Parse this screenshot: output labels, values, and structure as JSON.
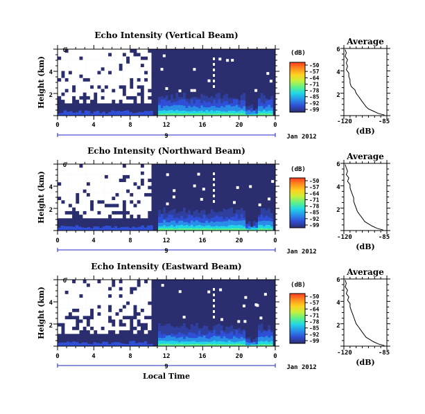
{
  "chart_data": [
    {
      "type": "heatmap",
      "title": "Echo Intensity (Vertical Beam)",
      "ylabel": "Height (km)",
      "yticks": [
        "6",
        "4",
        "2"
      ],
      "xticks": [
        "0",
        "4",
        "8",
        "12",
        "16",
        "20",
        "0"
      ],
      "date_label": "Jan 2012",
      "day_label": "9",
      "colorbar": {
        "unit": "(dB)",
        "ticks": [
          "-50",
          "-57",
          "-64",
          "-71",
          "-78",
          "-85",
          "-92",
          "-99"
        ]
      },
      "profile": {
        "title": "Average",
        "xlabel": "(dB)",
        "xticks": [
          "-120",
          "-85"
        ],
        "yticks": [
          "6",
          "4",
          "2"
        ],
        "xlim": [
          -120,
          -85
        ],
        "ylim": [
          0,
          6
        ],
        "points": [
          [
            -119,
            5.9
          ],
          [
            -118,
            5.6
          ],
          [
            -119,
            5.3
          ],
          [
            -117,
            5.0
          ],
          [
            -118,
            4.7
          ],
          [
            -117,
            4.4
          ],
          [
            -118,
            4.1
          ],
          [
            -116,
            3.8
          ],
          [
            -116,
            3.5
          ],
          [
            -115,
            3.2
          ],
          [
            -115,
            2.9
          ],
          [
            -114,
            2.6
          ],
          [
            -111,
            2.3
          ],
          [
            -110,
            2.0
          ],
          [
            -108,
            1.7
          ],
          [
            -106,
            1.4
          ],
          [
            -104,
            1.1
          ],
          [
            -102,
            0.8
          ],
          [
            -100,
            0.6
          ],
          [
            -96,
            0.4
          ],
          [
            -92,
            0.2
          ],
          [
            -87,
            0.05
          ]
        ]
      }
    },
    {
      "type": "heatmap",
      "title": "Echo Intensity (Northward Beam)",
      "ylabel": "Height (km)",
      "yticks": [
        "6",
        "4",
        "2"
      ],
      "xticks": [
        "0",
        "4",
        "8",
        "12",
        "16",
        "20",
        "0"
      ],
      "date_label": "Jan 2012",
      "day_label": "9",
      "colorbar": {
        "unit": "(dB)",
        "ticks": [
          "-50",
          "-57",
          "-64",
          "-71",
          "-78",
          "-85",
          "-92",
          "-99"
        ]
      },
      "profile": {
        "title": "Average",
        "xlabel": "(dB)",
        "xticks": [
          "-120",
          "-85"
        ],
        "yticks": [
          "6",
          "4",
          "2"
        ],
        "xlim": [
          -120,
          -85
        ],
        "ylim": [
          0,
          6
        ],
        "points": [
          [
            -119,
            5.9
          ],
          [
            -118,
            5.6
          ],
          [
            -117,
            5.3
          ],
          [
            -118,
            5.0
          ],
          [
            -116,
            4.7
          ],
          [
            -117,
            4.4
          ],
          [
            -115,
            4.1
          ],
          [
            -115,
            3.8
          ],
          [
            -114,
            3.5
          ],
          [
            -113,
            3.2
          ],
          [
            -112,
            2.9
          ],
          [
            -112,
            2.6
          ],
          [
            -111,
            2.3
          ],
          [
            -110,
            2.0
          ],
          [
            -109,
            1.7
          ],
          [
            -107,
            1.4
          ],
          [
            -105,
            1.1
          ],
          [
            -103,
            0.8
          ],
          [
            -100,
            0.6
          ],
          [
            -97,
            0.4
          ],
          [
            -93,
            0.2
          ],
          [
            -88,
            0.05
          ]
        ]
      }
    },
    {
      "type": "heatmap",
      "title": "Echo Intensity (Eastward Beam)",
      "ylabel": "Height (km)",
      "yticks": [
        "6",
        "4",
        "2"
      ],
      "xticks": [
        "0",
        "4",
        "8",
        "12",
        "16",
        "20",
        "0"
      ],
      "xlabel": "Local Time",
      "date_label": "Jan 2012",
      "day_label": "9",
      "colorbar": {
        "unit": "(dB)",
        "ticks": [
          "-50",
          "-57",
          "-64",
          "-71",
          "-78",
          "-85",
          "-92",
          "-99"
        ]
      },
      "profile": {
        "title": "Average",
        "xlabel": "(dB)",
        "xticks": [
          "-120",
          "-85"
        ],
        "yticks": [
          "6",
          "4",
          "2"
        ],
        "xlim": [
          -120,
          -85
        ],
        "ylim": [
          0,
          6
        ],
        "points": [
          [
            -119,
            5.9
          ],
          [
            -118,
            5.6
          ],
          [
            -119,
            5.3
          ],
          [
            -117,
            5.0
          ],
          [
            -118,
            4.7
          ],
          [
            -116,
            4.4
          ],
          [
            -117,
            4.1
          ],
          [
            -115,
            3.8
          ],
          [
            -115,
            3.5
          ],
          [
            -114,
            3.2
          ],
          [
            -113,
            2.9
          ],
          [
            -112,
            2.6
          ],
          [
            -111,
            2.3
          ],
          [
            -110,
            2.0
          ],
          [
            -108,
            1.7
          ],
          [
            -106,
            1.4
          ],
          [
            -104,
            1.1
          ],
          [
            -102,
            0.8
          ],
          [
            -99,
            0.6
          ],
          [
            -96,
            0.4
          ],
          [
            -92,
            0.2
          ],
          [
            -87,
            0.05
          ]
        ]
      }
    }
  ],
  "colors": {
    "background_field": "#2b2e6e",
    "scale": [
      "#ff3b20",
      "#ff8a1e",
      "#ffd21f",
      "#c8f03c",
      "#5cf08a",
      "#22d6e6",
      "#2a8ee8",
      "#2f4fd6",
      "#2b2e6e"
    ]
  }
}
